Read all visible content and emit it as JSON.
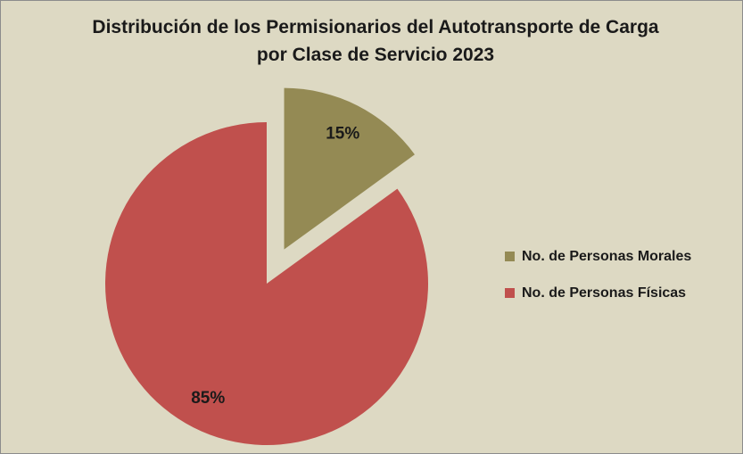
{
  "chart_data": {
    "type": "pie",
    "title": "Distribución de los Permisionarios del Autotransporte de Carga por Clase de Servicio 2023",
    "categories": [
      "No. de Personas Morales",
      "No. de Personas Físicas"
    ],
    "values": [
      15,
      85
    ],
    "value_labels": [
      "15%",
      "85%"
    ],
    "colors": [
      "#948a54",
      "#c0504d"
    ],
    "exploded": [
      true,
      false
    ],
    "legend": "right"
  }
}
